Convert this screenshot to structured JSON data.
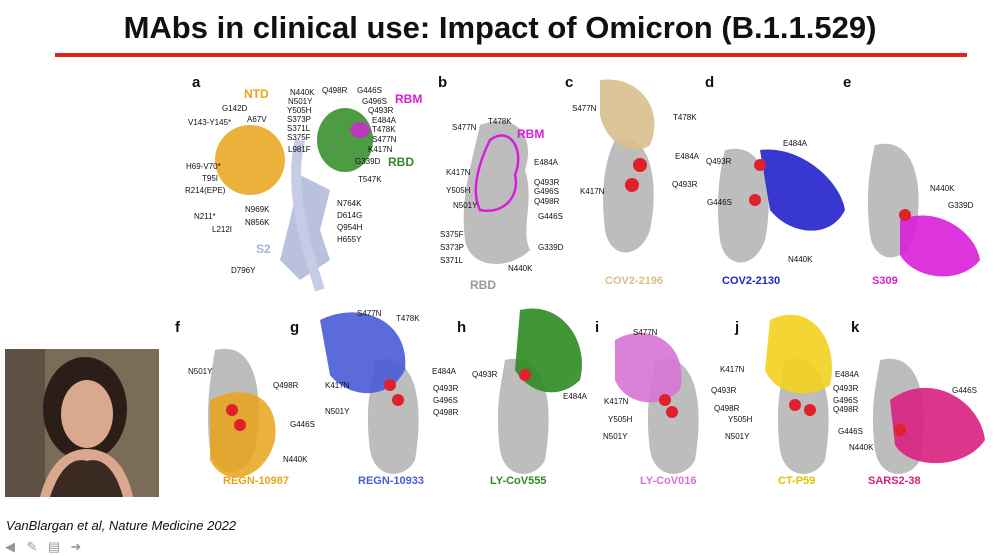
{
  "title": "MAbs in clinical use: Impact of Omicron (B.1.1.529)",
  "citation": "VanBlargan et al, Nature Medicine 2022",
  "colors": {
    "accent_line": "#e2231a",
    "ntd": "#e8a317",
    "rbm": "#d81fd8",
    "rbd": "#2e8b22",
    "s2": "#a9b1d6"
  },
  "panels": {
    "a": {
      "letter": "a",
      "ntd": "NTD",
      "rbm": "RBM",
      "rbd": "RBD",
      "s2": "S2",
      "labels": [
        "G142D",
        "A67V",
        "V143-Y145*",
        "H69-V70*",
        "T95I",
        "R214(EPE)",
        "N211*",
        "L212I",
        "N969K",
        "N856K",
        "D796Y",
        "N440K",
        "N501Y",
        "Y505H",
        "S373P",
        "S371L",
        "S375F",
        "L981F",
        "Q498R",
        "G446S",
        "G496S",
        "Q493R",
        "E484A",
        "T478K",
        "S477N",
        "K417N",
        "G339D",
        "T547K",
        "N764K",
        "D614G",
        "Q954H",
        "H655Y"
      ]
    },
    "b": {
      "letter": "b",
      "rbm": "RBM",
      "rbd": "RBD",
      "labels": [
        "S477N",
        "T478K",
        "E484A",
        "K417N",
        "Q493R",
        "Y505H",
        "G496S",
        "N501Y",
        "Q498R",
        "G446S",
        "S375F",
        "S373P",
        "G339D",
        "S371L",
        "N440K"
      ]
    },
    "c": {
      "letter": "c",
      "name": "COV2-2196",
      "labels": [
        "S477N",
        "T478K",
        "E484A",
        "Q493R",
        "K417N"
      ]
    },
    "d": {
      "letter": "d",
      "name": "COV2-2130",
      "labels": [
        "E484A",
        "Q493R",
        "G446S",
        "N440K"
      ]
    },
    "e": {
      "letter": "e",
      "name": "S309",
      "labels": [
        "N440K",
        "G339D"
      ]
    },
    "f": {
      "letter": "f",
      "name": "REGN-10987",
      "labels": [
        "N501Y",
        "Q498R",
        "G446S",
        "N440K"
      ]
    },
    "g": {
      "letter": "g",
      "name": "REGN-10933",
      "labels": [
        "S477N",
        "T478K",
        "E484A",
        "K417N",
        "Q493R",
        "G496S",
        "N501Y",
        "Q498R"
      ]
    },
    "h": {
      "letter": "h",
      "name": "LY-CoV555",
      "labels": [
        "Q493R",
        "E484A"
      ]
    },
    "i": {
      "letter": "i",
      "name": "LY-CoV016",
      "labels": [
        "S477N",
        "Q493R",
        "K417N",
        "Q498R",
        "Y505H",
        "N501Y"
      ]
    },
    "j": {
      "letter": "j",
      "name": "CT-P59",
      "labels": [
        "K417N",
        "E484A",
        "Q493R",
        "G496S",
        "Q498R",
        "Y505H",
        "N501Y",
        "G446S"
      ]
    },
    "k": {
      "letter": "k",
      "name": "SARS2-38",
      "labels": [
        "G446S",
        "N440K"
      ]
    }
  },
  "toolbar": [
    "back-arrow-icon",
    "pen-icon",
    "notes-icon",
    "forward-arrow-icon"
  ]
}
